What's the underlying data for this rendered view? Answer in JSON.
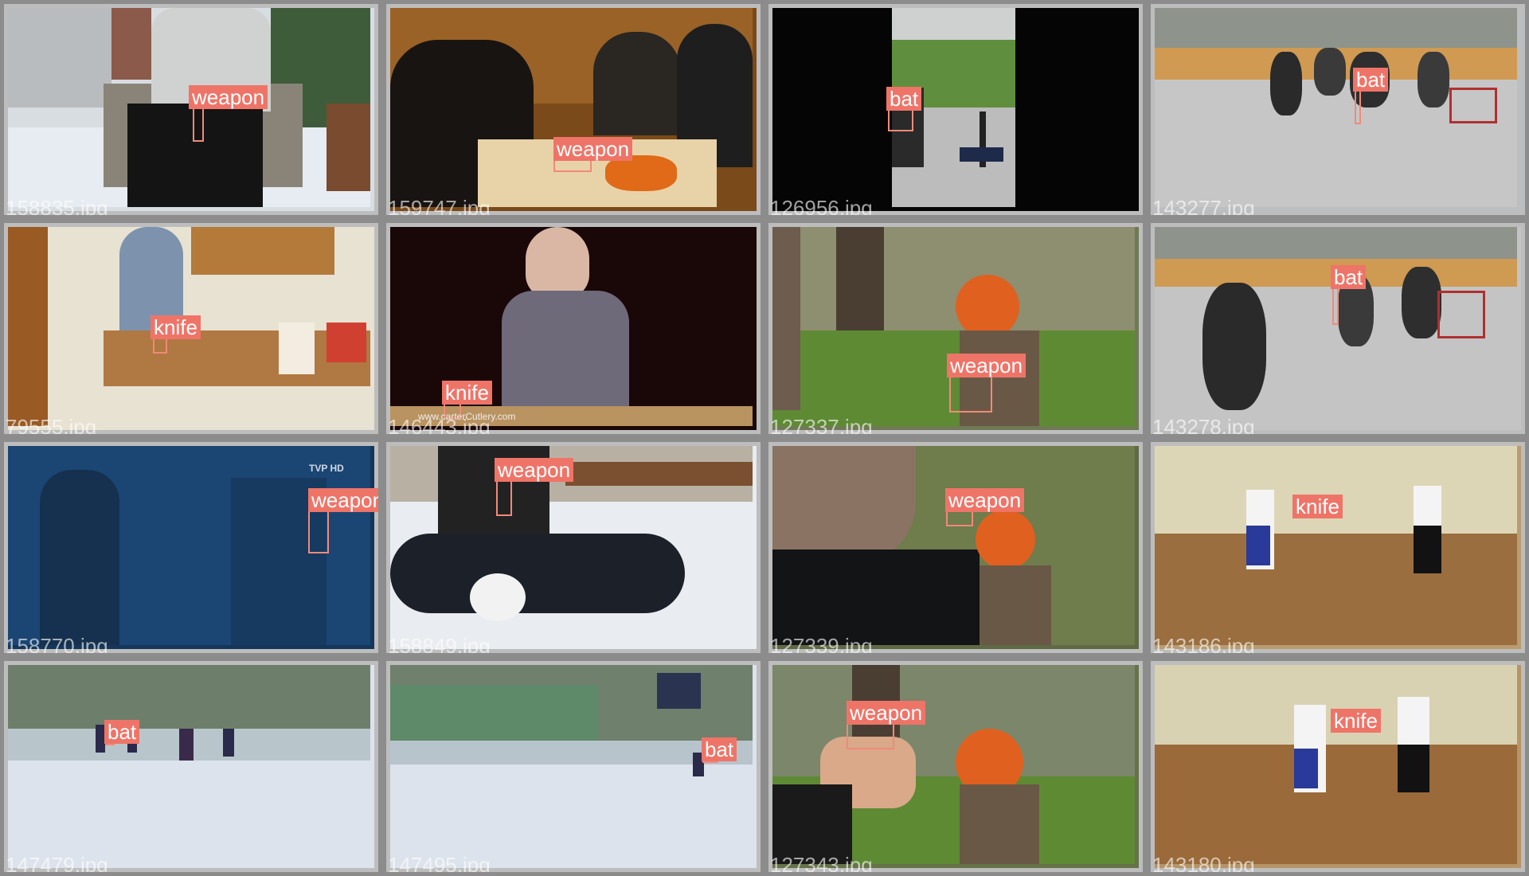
{
  "tiles": [
    {
      "filename": "158835.jpg",
      "label": "weapon"
    },
    {
      "filename": "159747.jpg",
      "label": "weapon"
    },
    {
      "filename": "126956.jpg",
      "label": "bat"
    },
    {
      "filename": "143277.jpg",
      "label": "bat"
    },
    {
      "filename": "79555.jpg",
      "label": "knife"
    },
    {
      "filename": "146443.jpg",
      "label": "knife",
      "watermark": "www.carterCutlery.com"
    },
    {
      "filename": "127337.jpg",
      "label": "weapon"
    },
    {
      "filename": "143278.jpg",
      "label": "bat"
    },
    {
      "filename": "158770.jpg",
      "label": "weapon",
      "channel_logo": "TVP HD"
    },
    {
      "filename": "158849.jpg",
      "label": "weapon"
    },
    {
      "filename": "127339.jpg",
      "label": "weapon"
    },
    {
      "filename": "143186.jpg",
      "label": "knife"
    },
    {
      "filename": "147479.jpg",
      "label": "bat"
    },
    {
      "filename": "147495.jpg",
      "label": "bat"
    },
    {
      "filename": "127343.jpg",
      "label": "weapon"
    },
    {
      "filename": "143180.jpg",
      "label": "knife"
    }
  ],
  "colors": {
    "label_bg": "#ef7468",
    "box_stroke": "#f08a7a",
    "border": "#bdbdbd"
  }
}
